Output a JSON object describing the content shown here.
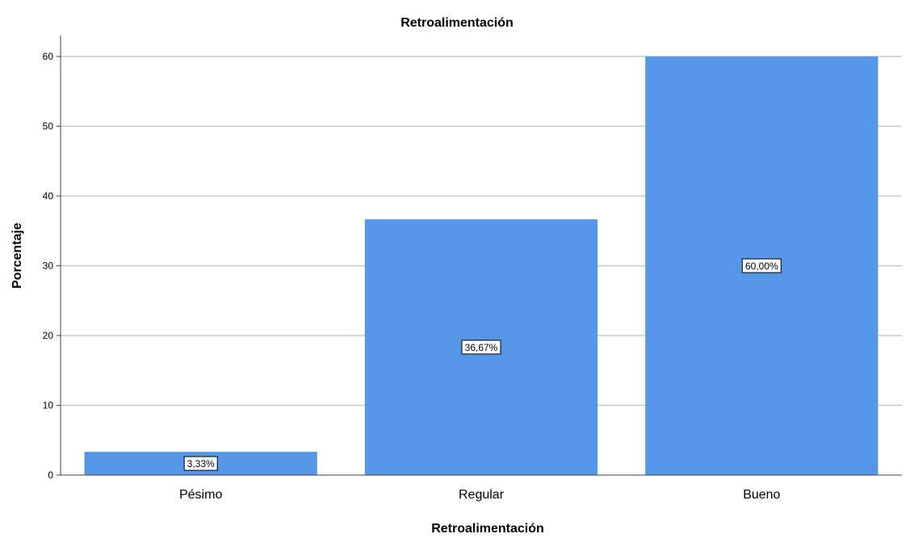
{
  "chart_data": {
    "type": "bar",
    "title": "Retroalimentación",
    "xlabel": "Retroalimentación",
    "ylabel": "Porcentaje",
    "categories": [
      "Pésimo",
      "Regular",
      "Bueno"
    ],
    "values": [
      3.33,
      36.67,
      60.0
    ],
    "data_labels": [
      "3,33%",
      "36,67%",
      "60,00%"
    ],
    "ylim": [
      0,
      63
    ],
    "yticks": [
      0,
      10,
      20,
      30,
      40,
      50,
      60
    ],
    "grid": true,
    "legend": "none",
    "bar_color": "#5596e6",
    "grid_color": "#c8c8c8",
    "axis_color": "#404040"
  }
}
